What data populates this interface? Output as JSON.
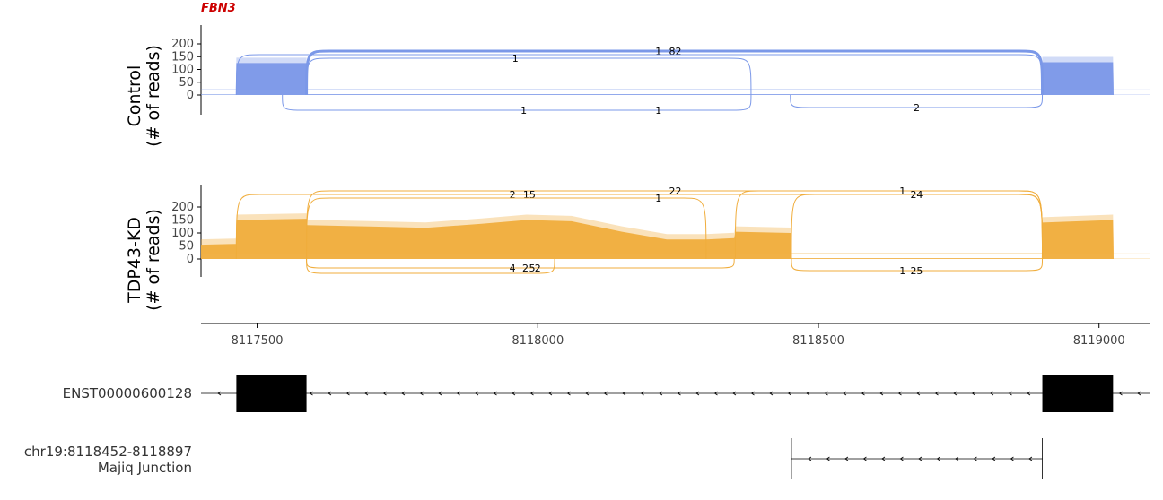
{
  "chart_data": {
    "type": "area",
    "gene": "FBN3",
    "x_range": [
      8117400,
      8119090
    ],
    "x_ticks": [
      "8117500",
      "8118000",
      "8118500",
      "8119000"
    ],
    "x_tick_values": [
      8117500,
      8118000,
      8118500,
      8119000
    ],
    "panels": [
      {
        "name": "Control",
        "ylabel_line1": "Control",
        "ylabel_line2": "(# of reads)",
        "color": "#7b98e8",
        "y_ticks": [
          "200",
          "150",
          "100",
          "50",
          "0"
        ],
        "y_tick_values": [
          200,
          150,
          100,
          50,
          0
        ],
        "coverage": [
          {
            "x": 8117400,
            "y": 2
          },
          {
            "x": 8117462,
            "y": 2
          },
          {
            "x": 8117463,
            "y": 125
          },
          {
            "x": 8117588,
            "y": 125
          },
          {
            "x": 8117589,
            "y": 3
          },
          {
            "x": 8118898,
            "y": 3
          },
          {
            "x": 8118899,
            "y": 128
          },
          {
            "x": 8119025,
            "y": 128
          },
          {
            "x": 8119026,
            "y": 1
          },
          {
            "x": 8119090,
            "y": 1
          }
        ],
        "junctions": [
          {
            "start": 8117588,
            "end": 8118899,
            "side": "top",
            "labels": [
              "1",
              "82"
            ],
            "label_x": [
              8118215,
              8118245
            ]
          },
          {
            "start": 8117463,
            "end": 8118899,
            "side": "top",
            "labels": [],
            "label_x": []
          },
          {
            "start": 8117588,
            "end": 8118380,
            "side": "top",
            "labels": [
              "1"
            ],
            "label_x": [
              8117960
            ]
          },
          {
            "start": 8117545,
            "end": 8118380,
            "side": "bottom",
            "labels": [
              "1",
              "1"
            ],
            "label_x": [
              8117975,
              8118215
            ]
          },
          {
            "start": 8118450,
            "end": 8118899,
            "side": "bottom",
            "labels": [
              "2"
            ],
            "label_x": [
              8118675
            ]
          }
        ]
      },
      {
        "name": "TDP43-KD",
        "ylabel_line1": "TDP43-KD",
        "ylabel_line2": "(# of reads)",
        "color": "#f0ad3c",
        "y_ticks": [
          "200",
          "150",
          "100",
          "50",
          "0"
        ],
        "y_tick_values": [
          200,
          150,
          100,
          50,
          0
        ],
        "coverage": [
          {
            "x": 8117400,
            "y": 55
          },
          {
            "x": 8117462,
            "y": 58
          },
          {
            "x": 8117463,
            "y": 150
          },
          {
            "x": 8117588,
            "y": 155
          },
          {
            "x": 8117589,
            "y": 130
          },
          {
            "x": 8117700,
            "y": 125
          },
          {
            "x": 8117800,
            "y": 120
          },
          {
            "x": 8117900,
            "y": 135
          },
          {
            "x": 8117980,
            "y": 150
          },
          {
            "x": 8118060,
            "y": 145
          },
          {
            "x": 8118150,
            "y": 105
          },
          {
            "x": 8118230,
            "y": 75
          },
          {
            "x": 8118300,
            "y": 75
          },
          {
            "x": 8118350,
            "y": 80
          },
          {
            "x": 8118352,
            "y": 105
          },
          {
            "x": 8118451,
            "y": 100
          },
          {
            "x": 8118452,
            "y": 3
          },
          {
            "x": 8118898,
            "y": 3
          },
          {
            "x": 8118899,
            "y": 140
          },
          {
            "x": 8119025,
            "y": 150
          },
          {
            "x": 8119026,
            "y": 1
          },
          {
            "x": 8119090,
            "y": 1
          }
        ],
        "junctions": [
          {
            "start": 8117588,
            "end": 8118899,
            "side": "top",
            "labels": [
              "22"
            ],
            "label_x": [
              8118245
            ]
          },
          {
            "start": 8117463,
            "end": 8118899,
            "side": "top",
            "labels": [
              "2",
              "15"
            ],
            "label_x": [
              8117955,
              8117985
            ]
          },
          {
            "start": 8117588,
            "end": 8118300,
            "side": "top",
            "labels": [
              "1"
            ],
            "label_x": [
              8118215
            ]
          },
          {
            "start": 8118352,
            "end": 8118899,
            "side": "top",
            "labels": [
              "1"
            ],
            "label_x": [
              8118650
            ]
          },
          {
            "start": 8118452,
            "end": 8118899,
            "side": "top",
            "labels": [
              "24"
            ],
            "label_x": [
              8118675
            ]
          },
          {
            "start": 8117588,
            "end": 8118350,
            "side": "bottom",
            "labels": [
              "4",
              "2",
              "5",
              "2"
            ],
            "label_x": [
              8117955,
              8117978,
              8117990,
              8118000
            ]
          },
          {
            "start": 8117588,
            "end": 8118030,
            "side": "bottom",
            "labels": [],
            "label_x": []
          },
          {
            "start": 8118452,
            "end": 8118899,
            "side": "bottom",
            "labels": [
              "1",
              "25"
            ],
            "label_x": [
              8118650,
              8118675
            ]
          }
        ]
      }
    ],
    "tracks": [
      {
        "label_line1": "ENST00000600128",
        "label_line2": "",
        "line_start": 8117400,
        "line_end": 8119090,
        "exons": [
          [
            8117463,
            8117588
          ],
          [
            8118899,
            8119025
          ]
        ]
      },
      {
        "label_line1": "chr19:8118452-8118897",
        "label_line2": "Majiq Junction",
        "line_start": 8118452,
        "line_end": 8118899,
        "exons": []
      }
    ]
  }
}
